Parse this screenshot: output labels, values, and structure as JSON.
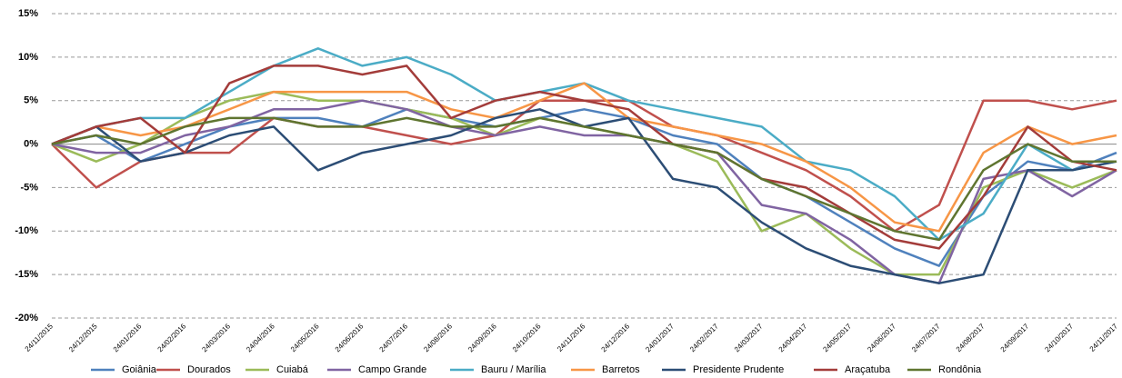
{
  "chart_data": {
    "type": "line",
    "categories": [
      "24/11/2015",
      "24/12/2015",
      "24/01/2016",
      "24/02/2016",
      "24/03/2016",
      "24/04/2016",
      "24/05/2016",
      "24/06/2016",
      "24/07/2016",
      "24/08/2016",
      "24/09/2016",
      "24/10/2016",
      "24/11/2016",
      "24/12/2016",
      "24/01/2017",
      "24/02/2017",
      "24/03/2017",
      "24/04/2017",
      "24/05/2017",
      "24/06/2017",
      "24/07/2017",
      "24/08/2017",
      "24/09/2017",
      "24/10/2017",
      "24/11/2017"
    ],
    "series": [
      {
        "name": "Goiânia",
        "color": "#4F81BD",
        "values": [
          0,
          1,
          -2,
          0,
          2,
          3,
          3,
          2,
          4,
          3,
          2,
          3,
          4,
          3,
          1,
          0,
          -4,
          -6,
          -9,
          -12,
          -14,
          -6,
          -2,
          -3,
          -1
        ]
      },
      {
        "name": "Dourados",
        "color": "#C0504D",
        "values": [
          0,
          -5,
          -2,
          -1,
          -1,
          3,
          2,
          2,
          1,
          0,
          1,
          5,
          5,
          5,
          2,
          1,
          -1,
          -3,
          -6,
          -10,
          -7,
          5,
          5,
          4,
          5
        ]
      },
      {
        "name": "Cuiabá",
        "color": "#9BBB59",
        "values": [
          0,
          -2,
          0,
          3,
          5,
          6,
          5,
          5,
          4,
          3,
          1,
          3,
          2,
          1,
          0,
          -2,
          -10,
          -8,
          -12,
          -15,
          -15,
          -5,
          -3,
          -5,
          -3
        ]
      },
      {
        "name": "Campo Grande",
        "color": "#8064A2",
        "values": [
          0,
          -1,
          -1,
          1,
          2,
          4,
          4,
          5,
          4,
          2,
          1,
          2,
          1,
          1,
          0,
          -1,
          -7,
          -8,
          -11,
          -15,
          -16,
          -4,
          -3,
          -6,
          -3
        ]
      },
      {
        "name": "Bauru / Marília",
        "color": "#4BACC6",
        "values": [
          0,
          2,
          3,
          3,
          6,
          9,
          11,
          9,
          10,
          8,
          5,
          6,
          7,
          5,
          4,
          3,
          2,
          -2,
          -3,
          -6,
          -11,
          -8,
          0,
          -3,
          -2
        ]
      },
      {
        "name": "Barretos",
        "color": "#F79646",
        "values": [
          0,
          2,
          1,
          2,
          4,
          6,
          6,
          6,
          6,
          4,
          3,
          5,
          7,
          3,
          2,
          1,
          0,
          -2,
          -5,
          -9,
          -10,
          -1,
          2,
          0,
          1
        ]
      },
      {
        "name": "Presidente Prudente",
        "color": "#2C4D75",
        "values": [
          0,
          2,
          -2,
          -1,
          1,
          2,
          -3,
          -1,
          0,
          1,
          3,
          4,
          2,
          3,
          -4,
          -5,
          -9,
          -12,
          -14,
          -15,
          -16,
          -15,
          -3,
          -3,
          -2
        ]
      },
      {
        "name": "Araçatuba",
        "color": "#A33C3A",
        "values": [
          0,
          2,
          3,
          -1,
          7,
          9,
          9,
          8,
          9,
          3,
          5,
          6,
          5,
          4,
          0,
          -1,
          -4,
          -5,
          -8,
          -11,
          -12,
          -6,
          2,
          -2,
          -3
        ]
      },
      {
        "name": "Rondônia",
        "color": "#5F7530",
        "values": [
          0,
          1,
          0,
          2,
          3,
          3,
          2,
          2,
          3,
          2,
          2,
          3,
          2,
          1,
          0,
          -1,
          -4,
          -6,
          -8,
          -10,
          -11,
          -3,
          0,
          -2,
          -2
        ]
      }
    ],
    "ylim": [
      -20,
      15
    ],
    "yticks": [
      {
        "value": -20,
        "label": "-20%"
      },
      {
        "value": -15,
        "label": "-15%"
      },
      {
        "value": -10,
        "label": "-10%"
      },
      {
        "value": -5,
        "label": "-5%"
      },
      {
        "value": 0,
        "label": "0%"
      },
      {
        "value": 5,
        "label": "5%"
      },
      {
        "value": 10,
        "label": "10%"
      },
      {
        "value": 15,
        "label": "15%"
      }
    ],
    "grid": true
  }
}
